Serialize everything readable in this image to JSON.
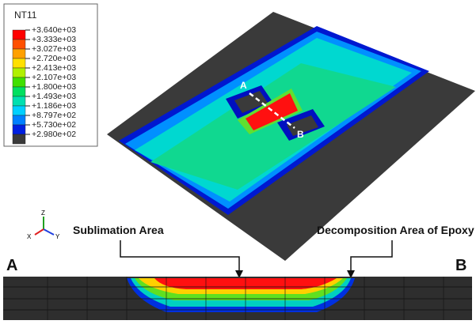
{
  "legend": {
    "title": "NT11",
    "labels": [
      "+3.640e+03",
      "+3.333e+03",
      "+3.027e+03",
      "+2.720e+03",
      "+2.413e+03",
      "+2.107e+03",
      "+1.800e+03",
      "+1.493e+03",
      "+1.186e+03",
      "+8.797e+02",
      "+5.730e+02",
      "+2.980e+02"
    ]
  },
  "plate_labels": {
    "a": "A",
    "b": "B"
  },
  "triad": {
    "z": "Z",
    "y": "Y",
    "x": "X"
  },
  "annotations": {
    "sublimation": "Sublimation Area",
    "decomposition": "Decomposition Area of Epoxy"
  },
  "section_labels": {
    "a": "A",
    "b": "B"
  }
}
